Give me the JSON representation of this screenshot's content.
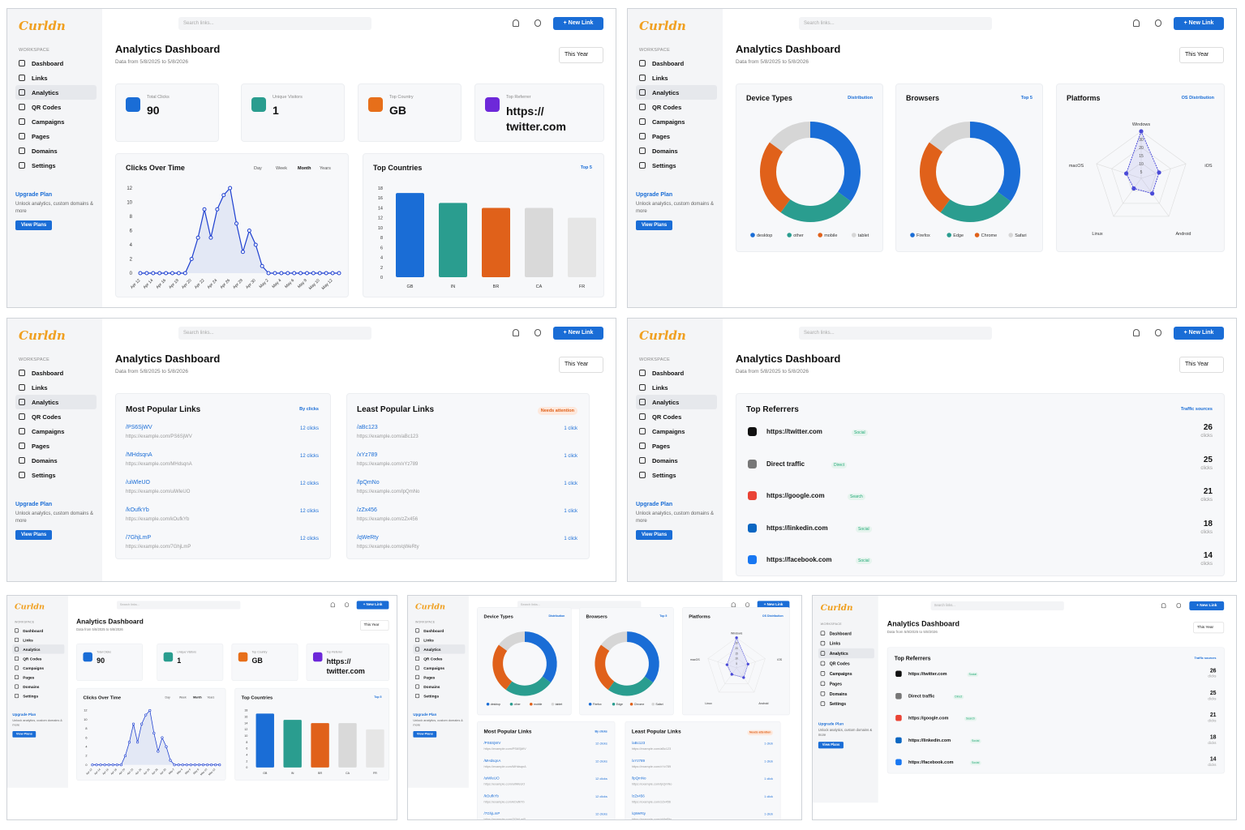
{
  "app": {
    "logo": "Curldn",
    "workspace_label": "WORKSPACE",
    "search_placeholder": "Search links...",
    "new_link": "+ New Link",
    "page_title": "Analytics Dashboard",
    "year_select": "This Year",
    "nav": [
      "Dashboard",
      "Links",
      "Analytics",
      "QR Codes",
      "Campaigns",
      "Pages",
      "Domains",
      "Settings"
    ],
    "upgrade_title": "Upgrade Plan",
    "upgrade_text": "Unlock analytics, custom domains & more",
    "upgrade_button": "View Plans"
  },
  "subtitles": {
    "overview": "Data from 5/8/2025 to 5/8/2026",
    "devices": "Data from 5/8/2025 to 5/8/2026",
    "links": "Data from 5/8/2025 to 5/8/2026",
    "referrers": "Data from 5/8/2025 to 5/8/2026"
  },
  "stats": [
    {
      "label": "Total Clicks",
      "value": "90",
      "color": "#1a6dd6"
    },
    {
      "label": "Unique Visitors",
      "value": "1",
      "color": "#2a9d8f"
    },
    {
      "label": "Top Country",
      "value": "GB",
      "color": "#e76f1a"
    },
    {
      "label": "Top Referrer",
      "value": "https:// twitter.com",
      "color": "#6d28d9"
    }
  ],
  "clicks_over_time": {
    "title": "Clicks Over Time",
    "tabs": [
      "Day",
      "Week",
      "Month",
      "Years"
    ]
  },
  "top_countries": {
    "title": "Top Countries",
    "tag": "Top 5"
  },
  "device_types": {
    "title": "Device Types",
    "tag": "Distribution"
  },
  "browsers": {
    "title": "Browsers",
    "tag": "Top 5"
  },
  "platforms": {
    "title": "Platforms",
    "tag": "OS Distribution"
  },
  "popular_links": {
    "title": "Most Popular Links",
    "tag": "By clicks",
    "rows": [
      {
        "slug": "/PS6SjWV",
        "url": "https://example.com/PS6SjWV",
        "clicks": "12 clicks"
      },
      {
        "slug": "/MHdsqnA",
        "url": "https://example.com/MHdsqnA",
        "clicks": "12 clicks"
      },
      {
        "slug": "/uiWleUO",
        "url": "https://example.com/uiWleUO",
        "clicks": "12 clicks"
      },
      {
        "slug": "/kOufkYb",
        "url": "https://example.com/kOufkYb",
        "clicks": "12 clicks"
      },
      {
        "slug": "/7GhjLmP",
        "url": "https://example.com/7GhjLmP",
        "clicks": "12 clicks"
      }
    ]
  },
  "least_links": {
    "title": "Least Popular Links",
    "tag": "Needs attention",
    "rows": [
      {
        "slug": "/aBc123",
        "url": "https://example.com/aBc123",
        "clicks": "1 click"
      },
      {
        "slug": "/xYz789",
        "url": "https://example.com/xYz789",
        "clicks": "1 click"
      },
      {
        "slug": "/lpQmNo",
        "url": "https://example.com/lpQmNo",
        "clicks": "1 click"
      },
      {
        "slug": "/zZx456",
        "url": "https://example.com/zZx456",
        "clicks": "1 click"
      },
      {
        "slug": "/qWeRty",
        "url": "https://example.com/qWeRty",
        "clicks": "1 click"
      }
    ]
  },
  "referrers": {
    "title": "Top Referrers",
    "tag": "Traffic sources",
    "unit": "clicks",
    "rows": [
      {
        "name": "https://twitter.com",
        "kind": "Social",
        "count": "26",
        "icon": "x-icon",
        "color": "#111111"
      },
      {
        "name": "Direct traffic",
        "kind": "Direct",
        "count": "25",
        "icon": "eye-icon",
        "color": "#777777"
      },
      {
        "name": "https://google.com",
        "kind": "Search",
        "count": "21",
        "icon": "google-icon",
        "color": "#ea4335"
      },
      {
        "name": "https://linkedin.com",
        "kind": "Social",
        "count": "18",
        "icon": "linkedin-icon",
        "color": "#0a66c2"
      },
      {
        "name": "https://facebook.com",
        "kind": "Social",
        "count": "14",
        "icon": "facebook-icon",
        "color": "#1877f2"
      }
    ]
  },
  "chart_data": [
    {
      "type": "line",
      "title": "Clicks Over Time",
      "x": [
        "Apr 12",
        "Apr 13",
        "Apr 14",
        "Apr 15",
        "Apr 16",
        "Apr 17",
        "Apr 18",
        "Apr 19",
        "Apr 20",
        "Apr 21",
        "Apr 22",
        "Apr 23",
        "Apr 24",
        "Apr 25",
        "Apr 26",
        "Apr 27",
        "Apr 28",
        "Apr 29",
        "Apr 30",
        "May 1",
        "May 2",
        "May 3",
        "May 4",
        "May 5",
        "May 6",
        "May 7",
        "May 8",
        "May 9",
        "May 10",
        "May 11",
        "May 12",
        "May 13"
      ],
      "x_ticks": [
        "Apr 12",
        "Apr 14",
        "Apr 16",
        "Apr 18",
        "Apr 20",
        "Apr 22",
        "Apr 24",
        "Apr 26",
        "Apr 28",
        "Apr 30",
        "May 2",
        "May 4",
        "May 6",
        "May 8",
        "May 10",
        "May 12"
      ],
      "values": [
        0,
        0,
        0,
        0,
        0,
        0,
        0,
        0,
        2,
        5,
        9,
        5,
        9,
        11,
        12,
        7,
        3,
        6,
        4,
        1,
        0,
        0,
        0,
        0,
        0,
        0,
        0,
        0,
        0,
        0,
        0,
        0
      ],
      "ylim": [
        0,
        12
      ],
      "yticks": [
        0,
        2,
        4,
        6,
        8,
        10,
        12
      ],
      "grid": false,
      "color": "#1d3fd0"
    },
    {
      "type": "bar",
      "title": "Top Countries",
      "categories": [
        "GB",
        "IN",
        "BR",
        "CA",
        "FR"
      ],
      "values": [
        17,
        15,
        14,
        14,
        12
      ],
      "colors": [
        "#1a6dd6",
        "#2a9d8f",
        "#e0611a",
        "#d9d9d9",
        "#e6e6e6"
      ],
      "ylim": [
        0,
        18
      ],
      "yticks": [
        0,
        2,
        4,
        6,
        8,
        10,
        12,
        14,
        16,
        18
      ],
      "grid": false
    },
    {
      "type": "pie",
      "title": "Device Types",
      "labels": [
        "desktop",
        "other",
        "mobile",
        "tablet"
      ],
      "values": [
        35,
        25,
        25,
        15
      ],
      "colors": [
        "#1a6dd6",
        "#2a9d8f",
        "#e0611a",
        "#d6d6d6"
      ],
      "legend": "bottom"
    },
    {
      "type": "pie",
      "title": "Browsers",
      "labels": [
        "Firefox",
        "Edge",
        "Chrome",
        "Safari"
      ],
      "values": [
        35,
        25,
        25,
        15
      ],
      "colors": [
        "#1a6dd6",
        "#2a9d8f",
        "#e0611a",
        "#d6d6d6"
      ],
      "legend": "bottom"
    },
    {
      "type": "radar",
      "title": "Platforms",
      "axes": [
        "Windows",
        "iOS",
        "Android",
        "Linux",
        "macOS"
      ],
      "values": [
        30,
        12,
        12,
        8,
        10
      ],
      "rticks": [
        0,
        5,
        10,
        15,
        20,
        30
      ],
      "color": "#4a4ad8"
    }
  ]
}
